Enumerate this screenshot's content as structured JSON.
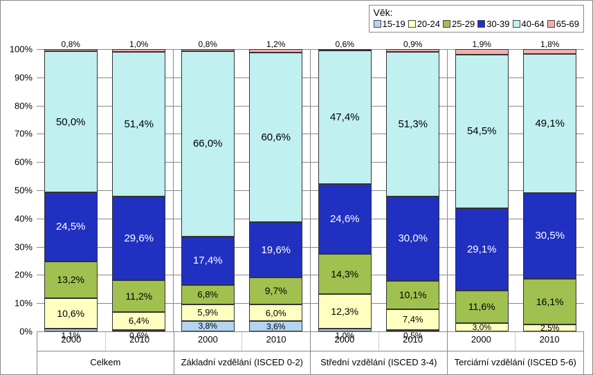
{
  "chart": {
    "type": "stacked-bar-100",
    "legend_title": "Věk:",
    "series": [
      {
        "key": "15-19",
        "label": "15-19",
        "color": "#b4d4f0"
      },
      {
        "key": "20-24",
        "label": "20-24",
        "color": "#ffffc0"
      },
      {
        "key": "25-29",
        "label": "25-29",
        "color": "#a0c050"
      },
      {
        "key": "30-39",
        "label": "30-39",
        "color": "#2030c0"
      },
      {
        "key": "40-64",
        "label": "40-64",
        "color": "#c0f0f0"
      },
      {
        "key": "65-69",
        "label": "65-69",
        "color": "#f0b0b0"
      }
    ],
    "y": {
      "min": 0,
      "max": 100,
      "step": 10,
      "suffix": "%"
    },
    "groups": [
      {
        "name": "Celkem",
        "bars": [
          {
            "year": "2000",
            "segments": [
              {
                "series": "15-19",
                "value": 1.1,
                "label": "1,1%",
                "label_pos": "below",
                "font": 12
              },
              {
                "series": "20-24",
                "value": 10.6,
                "label": "10,6%",
                "font": 14
              },
              {
                "series": "25-29",
                "value": 13.2,
                "label": "13,2%",
                "font": 14
              },
              {
                "series": "30-39",
                "value": 24.5,
                "label": "24,5%",
                "color_text": "#ffffff",
                "font": 15
              },
              {
                "series": "40-64",
                "value": 50.0,
                "label": "50,0%",
                "font": 15
              },
              {
                "series": "65-69",
                "value": 0.8,
                "label": "0,8%",
                "label_pos": "above",
                "font": 12
              }
            ]
          },
          {
            "year": "2010",
            "segments": [
              {
                "series": "15-19",
                "value": 0.6,
                "label": "0,6%",
                "label_pos": "below",
                "font": 12
              },
              {
                "series": "20-24",
                "value": 6.4,
                "label": "6,4%",
                "font": 13
              },
              {
                "series": "25-29",
                "value": 11.2,
                "label": "11,2%",
                "font": 14
              },
              {
                "series": "30-39",
                "value": 29.6,
                "label": "29,6%",
                "color_text": "#ffffff",
                "font": 15
              },
              {
                "series": "40-64",
                "value": 51.4,
                "label": "51,4%",
                "font": 15
              },
              {
                "series": "65-69",
                "value": 1.0,
                "label": "1,0%",
                "label_pos": "above",
                "font": 12
              }
            ]
          }
        ]
      },
      {
        "name": "Základní vzdělání (ISCED 0-2)",
        "bars": [
          {
            "year": "2000",
            "segments": [
              {
                "series": "15-19",
                "value": 3.8,
                "label": "3,8%",
                "font": 12
              },
              {
                "series": "20-24",
                "value": 5.9,
                "label": "5,9%",
                "font": 13
              },
              {
                "series": "25-29",
                "value": 6.8,
                "label": "6,8%",
                "font": 13
              },
              {
                "series": "30-39",
                "value": 17.4,
                "label": "17,4%",
                "color_text": "#ffffff",
                "font": 15
              },
              {
                "series": "40-64",
                "value": 66.0,
                "label": "66,0%",
                "font": 15
              },
              {
                "series": "65-69",
                "value": 0.8,
                "label": "0,8%",
                "label_pos": "above",
                "font": 12
              }
            ]
          },
          {
            "year": "2010",
            "segments": [
              {
                "series": "15-19",
                "value": 3.6,
                "label": "3,6%",
                "font": 12
              },
              {
                "series": "20-24",
                "value": 6.0,
                "label": "6,0%",
                "font": 13
              },
              {
                "series": "25-29",
                "value": 9.7,
                "label": "9,7%",
                "font": 14
              },
              {
                "series": "30-39",
                "value": 19.6,
                "label": "19,6%",
                "color_text": "#ffffff",
                "font": 15
              },
              {
                "series": "40-64",
                "value": 60.6,
                "label": "60,6%",
                "font": 15
              },
              {
                "series": "65-69",
                "value": 1.2,
                "label": "1,2%",
                "label_pos": "above",
                "font": 12
              }
            ]
          }
        ]
      },
      {
        "name": "Střední vzdělání (ISCED 3-4)",
        "bars": [
          {
            "year": "2000",
            "segments": [
              {
                "series": "15-19",
                "value": 1.0,
                "label": "1,0%",
                "label_pos": "below",
                "font": 12
              },
              {
                "series": "20-24",
                "value": 12.3,
                "label": "12,3%",
                "font": 14
              },
              {
                "series": "25-29",
                "value": 14.3,
                "label": "14,3%",
                "font": 14
              },
              {
                "series": "30-39",
                "value": 24.6,
                "label": "24,6%",
                "color_text": "#ffffff",
                "font": 15
              },
              {
                "series": "40-64",
                "value": 47.4,
                "label": "47,4%",
                "font": 15
              },
              {
                "series": "65-69",
                "value": 0.6,
                "label": "0,6%",
                "label_pos": "above",
                "font": 12
              }
            ]
          },
          {
            "year": "2010",
            "segments": [
              {
                "series": "15-19",
                "value": 0.5,
                "label": "0,5%",
                "label_pos": "below",
                "font": 12
              },
              {
                "series": "20-24",
                "value": 7.4,
                "label": "7,4%",
                "font": 13
              },
              {
                "series": "25-29",
                "value": 10.1,
                "label": "10,1%",
                "font": 14
              },
              {
                "series": "30-39",
                "value": 30.0,
                "label": "30,0%",
                "color_text": "#ffffff",
                "font": 15
              },
              {
                "series": "40-64",
                "value": 51.3,
                "label": "51,3%",
                "font": 15
              },
              {
                "series": "65-69",
                "value": 0.9,
                "label": "0,9%",
                "label_pos": "above",
                "font": 12
              }
            ]
          }
        ]
      },
      {
        "name": "Terciární vzdělání (ISCED 5-6)",
        "bars": [
          {
            "year": "2000",
            "segments": [
              {
                "series": "20-24",
                "value": 3.0,
                "label": "3,0%",
                "font": 12
              },
              {
                "series": "25-29",
                "value": 11.6,
                "label": "11,6%",
                "font": 14
              },
              {
                "series": "30-39",
                "value": 29.1,
                "label": "29,1%",
                "color_text": "#ffffff",
                "font": 15
              },
              {
                "series": "40-64",
                "value": 54.5,
                "label": "54,5%",
                "font": 15
              },
              {
                "series": "65-69",
                "value": 1.9,
                "label": "1,9%",
                "label_pos": "above",
                "font": 12
              }
            ]
          },
          {
            "year": "2010",
            "segments": [
              {
                "series": "20-24",
                "value": 2.5,
                "label": "2,5%",
                "font": 12
              },
              {
                "series": "25-29",
                "value": 16.1,
                "label": "16,1%",
                "font": 14
              },
              {
                "series": "30-39",
                "value": 30.5,
                "label": "30,5%",
                "color_text": "#ffffff",
                "font": 15
              },
              {
                "series": "40-64",
                "value": 49.1,
                "label": "49,1%",
                "font": 15
              },
              {
                "series": "65-69",
                "value": 1.8,
                "label": "1,8%",
                "label_pos": "above",
                "font": 12
              }
            ]
          }
        ]
      }
    ]
  }
}
